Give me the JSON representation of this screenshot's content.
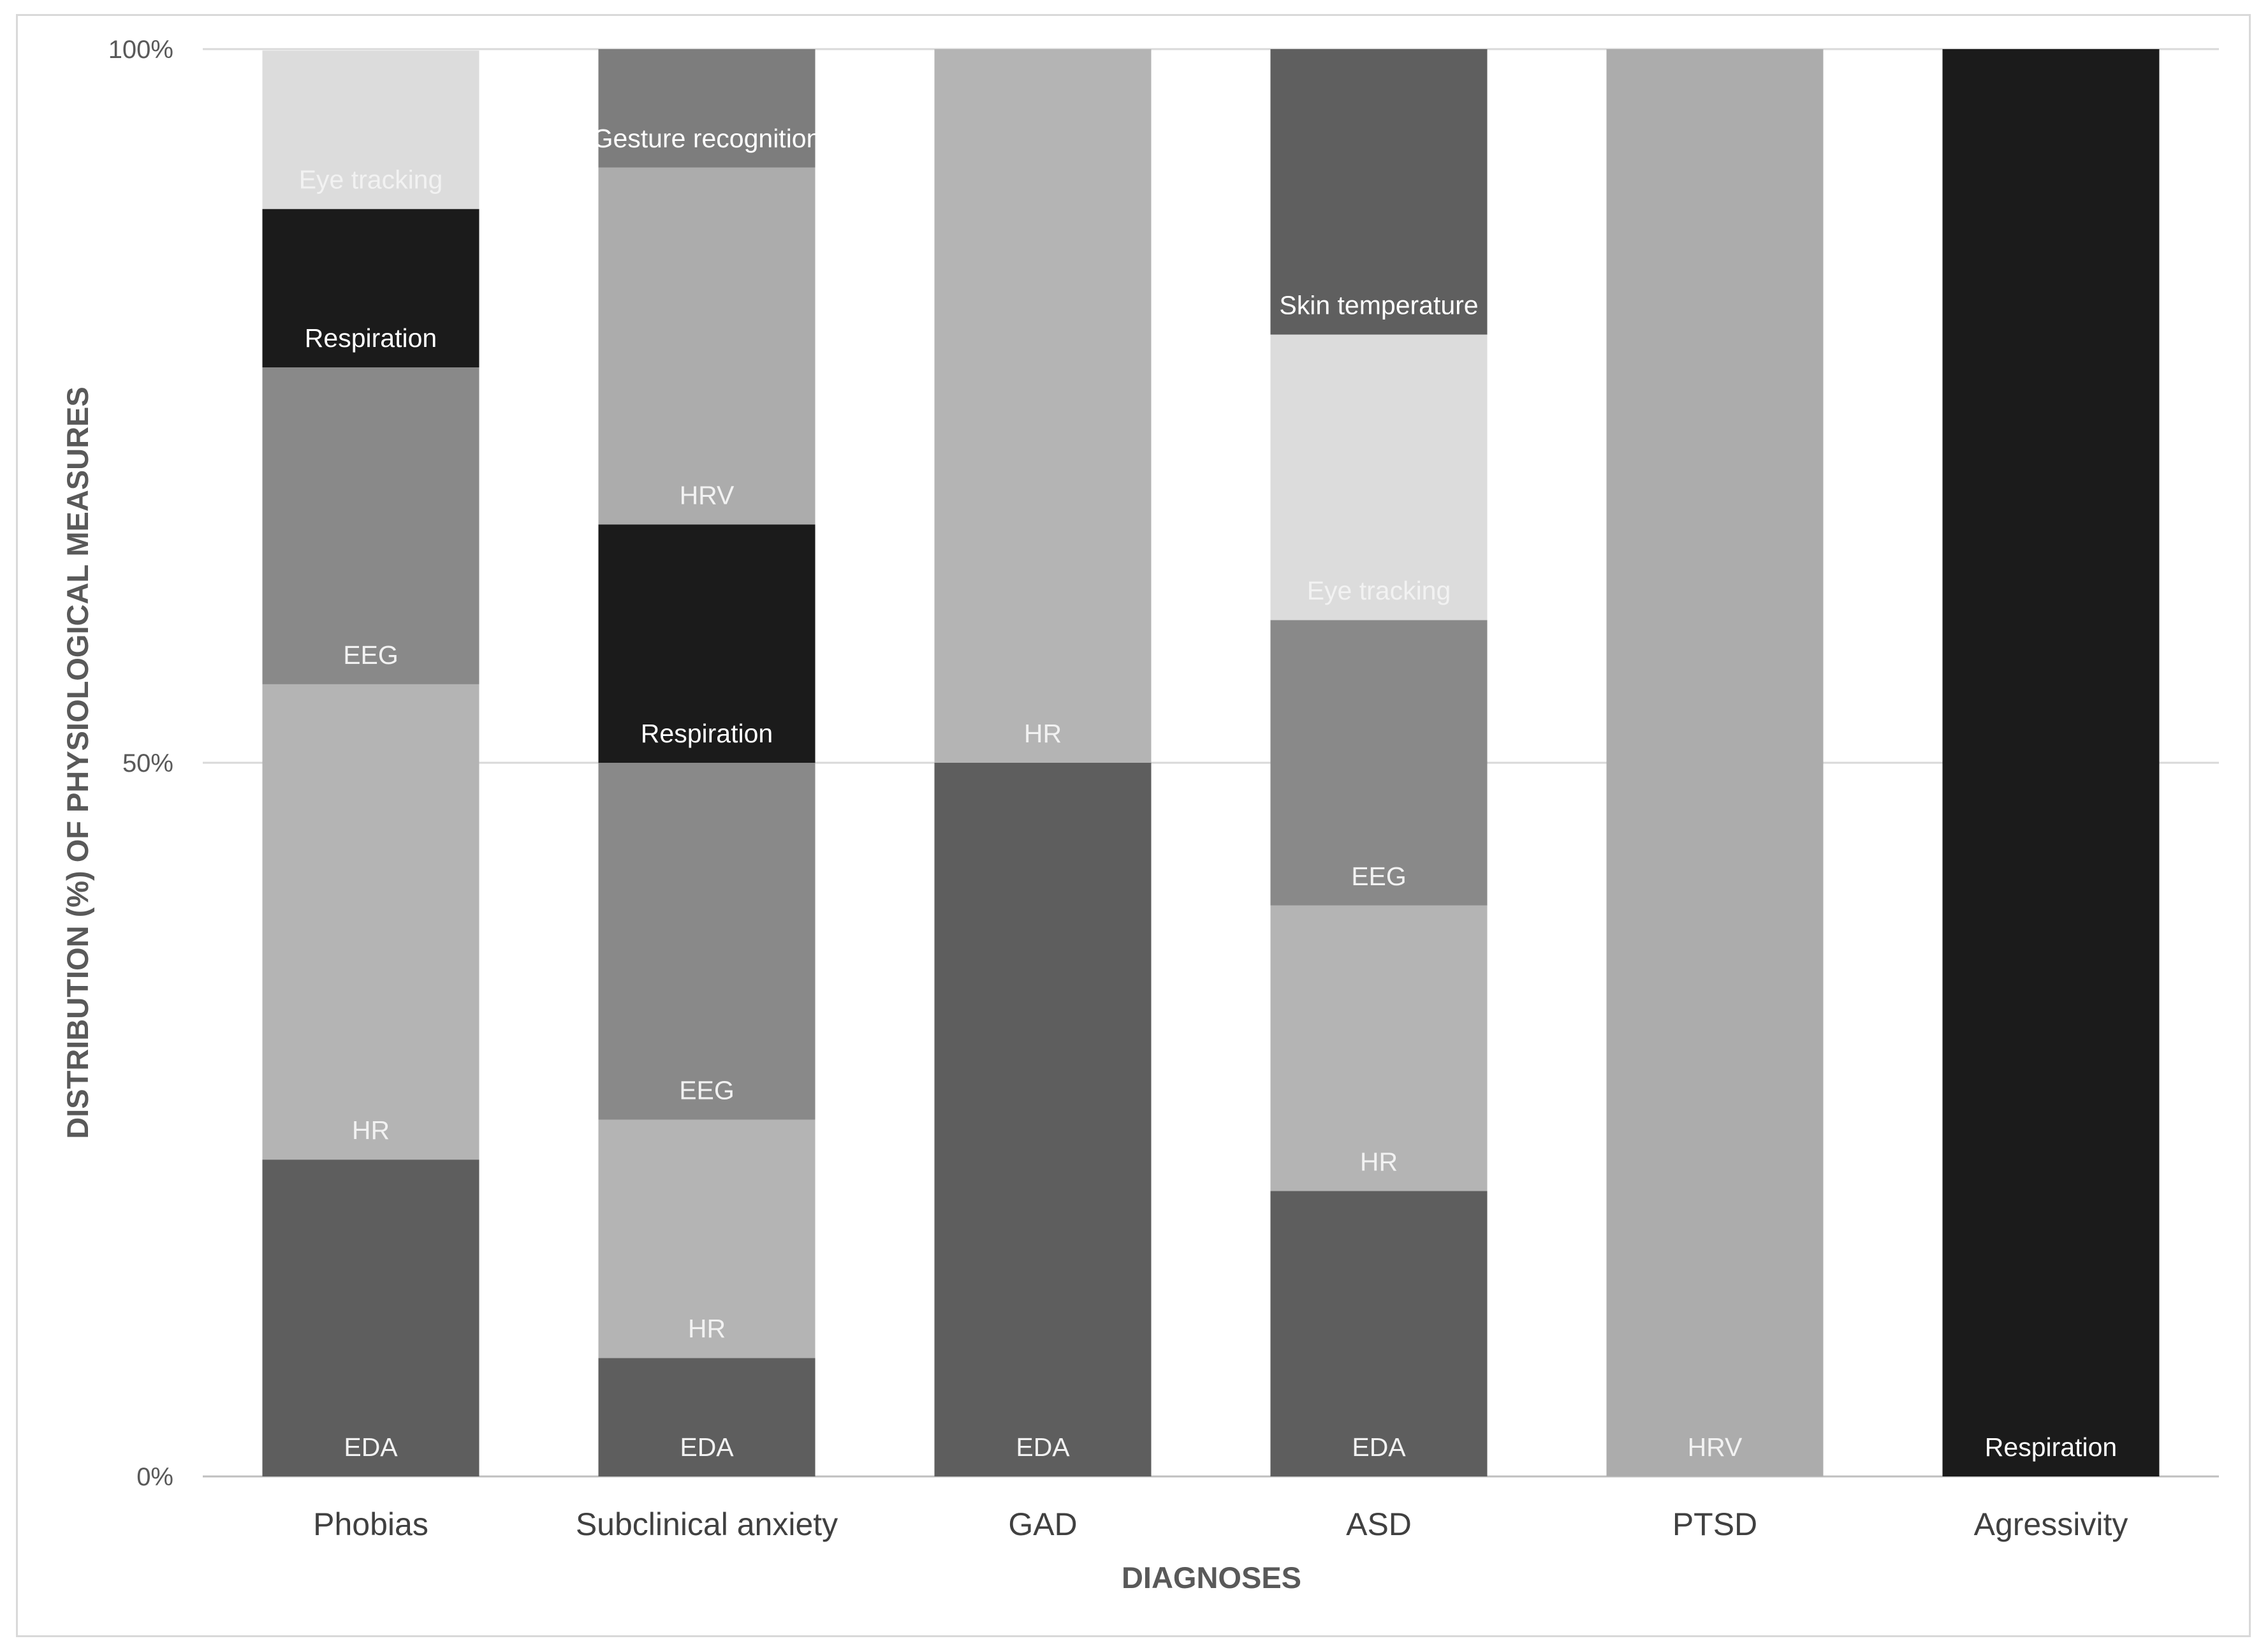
{
  "chart_data": {
    "type": "bar",
    "stacked": true,
    "normalized": true,
    "title": "",
    "xlabel": "DIAGNOSES",
    "ylabel": "DISTRIBUTION (%) OF PHYSIOLOGICAL MEASURES",
    "ylim": [
      0,
      100
    ],
    "yticks": [
      {
        "value": 0,
        "label": "0%"
      },
      {
        "value": 50,
        "label": "50%"
      },
      {
        "value": 100,
        "label": "100%"
      }
    ],
    "grid": true,
    "legend": "none",
    "categories": [
      "Phobias",
      "Subclinical anxiety",
      "GAD",
      "ASD",
      "PTSD",
      "Agressivity"
    ],
    "colors": {
      "EDA": "#5e5e5e",
      "HR": "#b4b4b4",
      "EEG": "#898989",
      "Respiration": "#1b1b1b",
      "Eye tracking": "#dcdcdc",
      "HRV": "#acacac",
      "Gesture recognition": "#7d7d7d",
      "Skin temperature": "#5f5f5f"
    },
    "label_colors": {
      "Respiration": "#ffffff",
      "Gesture recognition": "#ffffff",
      "Skin temperature": "#ffffff",
      "default": "#f2f2f2"
    },
    "stacks": [
      {
        "category": "Phobias",
        "segments": [
          {
            "name": "EDA",
            "value": 22.2
          },
          {
            "name": "HR",
            "value": 33.3
          },
          {
            "name": "EEG",
            "value": 22.2
          },
          {
            "name": "Respiration",
            "value": 11.1
          },
          {
            "name": "Eye tracking",
            "value": 11.1
          }
        ]
      },
      {
        "category": "Subclinical anxiety",
        "segments": [
          {
            "name": "EDA",
            "value": 8.3
          },
          {
            "name": "HR",
            "value": 16.7
          },
          {
            "name": "EEG",
            "value": 25.0
          },
          {
            "name": "Respiration",
            "value": 16.7
          },
          {
            "name": "HRV",
            "value": 25.0
          },
          {
            "name": "Gesture recognition",
            "value": 8.3
          }
        ]
      },
      {
        "category": "GAD",
        "segments": [
          {
            "name": "EDA",
            "value": 50
          },
          {
            "name": "HR",
            "value": 50
          }
        ]
      },
      {
        "category": "ASD",
        "segments": [
          {
            "name": "EDA",
            "value": 20
          },
          {
            "name": "HR",
            "value": 20
          },
          {
            "name": "EEG",
            "value": 20
          },
          {
            "name": "Eye tracking",
            "value": 20
          },
          {
            "name": "Skin temperature",
            "value": 20
          }
        ]
      },
      {
        "category": "PTSD",
        "segments": [
          {
            "name": "HRV",
            "value": 100
          }
        ]
      },
      {
        "category": "Agressivity",
        "segments": [
          {
            "name": "Respiration",
            "value": 100
          }
        ]
      }
    ]
  }
}
